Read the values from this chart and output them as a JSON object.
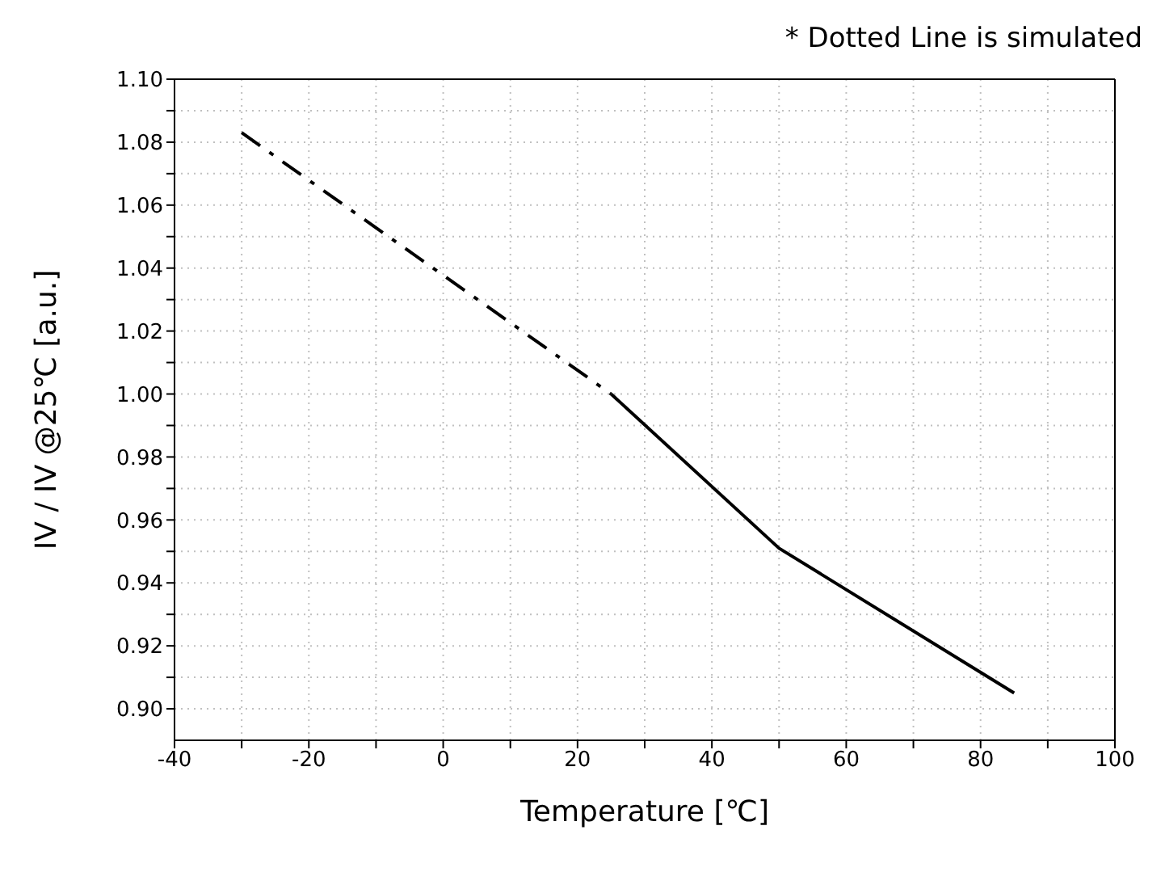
{
  "chart_data": {
    "type": "line",
    "xlabel": "Temperature [℃]",
    "ylabel": "IV / IV @25℃ [a.u.]",
    "annotations": [
      "* Dotted Line is simulated"
    ],
    "series": [
      {
        "color": "#000000",
        "line_style": "dashed",
        "x": [
          -30,
          25
        ],
        "values": [
          1.083,
          1.0
        ]
      },
      {
        "color": "#000000",
        "line_style": "solid",
        "x": [
          25,
          50,
          85
        ],
        "values": [
          1.0,
          0.951,
          0.905
        ]
      }
    ],
    "xlim": [
      -40,
      100
    ],
    "xticks": [
      -40,
      {
        "value": -30,
        "label": null
      },
      -20,
      {
        "value": -10,
        "label": null
      },
      0,
      {
        "value": 10,
        "label": null
      },
      20,
      {
        "value": 30,
        "label": null
      },
      40,
      {
        "value": 50,
        "label": null
      },
      60,
      {
        "value": 70,
        "label": null
      },
      80,
      {
        "value": 90,
        "label": null
      },
      100
    ],
    "ylim": [
      0.89,
      1.1
    ],
    "yticks": [
      {
        "value": 0.9,
        "label": "0.90"
      },
      {
        "value": 0.91,
        "label": null
      },
      {
        "value": 0.92,
        "label": "0.92"
      },
      {
        "value": 0.93,
        "label": null
      },
      {
        "value": 0.94,
        "label": "0.94"
      },
      {
        "value": 0.95,
        "label": null
      },
      {
        "value": 0.96,
        "label": "0.96"
      },
      {
        "value": 0.97,
        "label": null
      },
      {
        "value": 0.98,
        "label": "0.98"
      },
      {
        "value": 0.99,
        "label": null
      },
      {
        "value": 1.0,
        "label": "1.00"
      },
      {
        "value": 1.01,
        "label": null
      },
      {
        "value": 1.02,
        "label": "1.02"
      },
      {
        "value": 1.03,
        "label": null
      },
      {
        "value": 1.04,
        "label": "1.04"
      },
      {
        "value": 1.05,
        "label": null
      },
      {
        "value": 1.06,
        "label": "1.06"
      },
      {
        "value": 1.07,
        "label": null
      },
      {
        "value": 1.08,
        "label": "1.08"
      },
      {
        "value": 1.09,
        "label": null
      },
      {
        "value": 1.1,
        "label": "1.10"
      }
    ],
    "grid": true,
    "marker": "none"
  }
}
